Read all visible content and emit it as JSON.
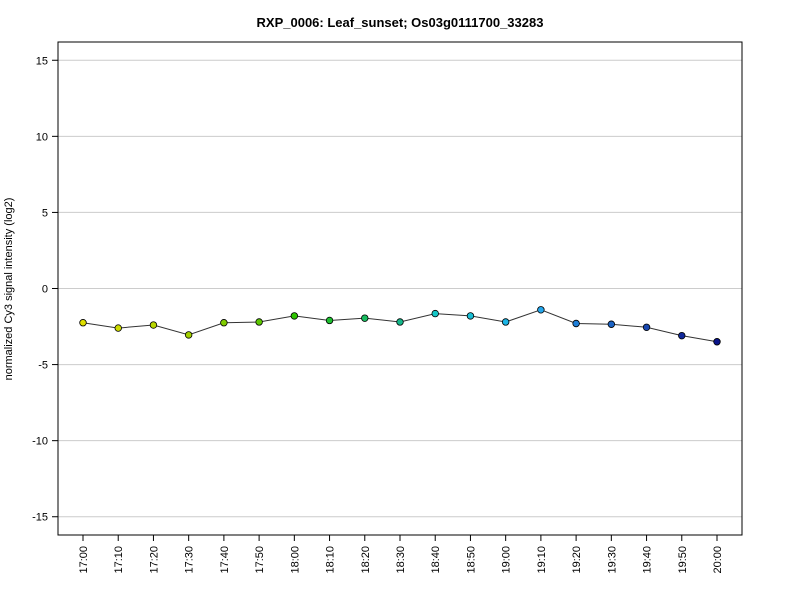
{
  "chart_data": {
    "type": "line",
    "title": "RXP_0006: Leaf_sunset; Os03g0111700_33283",
    "xlabel": "",
    "ylabel": "normalized Cy3 signal intensity (log2)",
    "ylim": [
      -16.2,
      16.2
    ],
    "yticks": [
      -15,
      -10,
      -5,
      0,
      5,
      10,
      15
    ],
    "grid": "horizontal",
    "categories": [
      "17:00",
      "17:10",
      "17:20",
      "17:30",
      "17:40",
      "17:50",
      "18:00",
      "18:10",
      "18:20",
      "18:30",
      "18:40",
      "18:50",
      "19:00",
      "19:10",
      "19:20",
      "19:30",
      "19:40",
      "19:50",
      "20:00"
    ],
    "series": [
      {
        "values": [
          -2.25,
          -2.6,
          -2.4,
          -3.05,
          -2.25,
          -2.2,
          -1.8,
          -2.1,
          -1.95,
          -2.2,
          -1.65,
          -1.8,
          -2.2,
          -1.4,
          -2.3,
          -2.35,
          -2.55,
          -3.1,
          -3.5
        ]
      }
    ],
    "point_colors": [
      "#e0e000",
      "#cddb00",
      "#b8d600",
      "#a3d100",
      "#80cc00",
      "#5cc800",
      "#2ec400",
      "#1dbf30",
      "#17bb5e",
      "#14b78a",
      "#14c7c7",
      "#1abfd6",
      "#1cb5e6",
      "#24a6ec",
      "#1e7fd9",
      "#1c63c4",
      "#1848b0",
      "#10289a",
      "#0a148a"
    ]
  }
}
